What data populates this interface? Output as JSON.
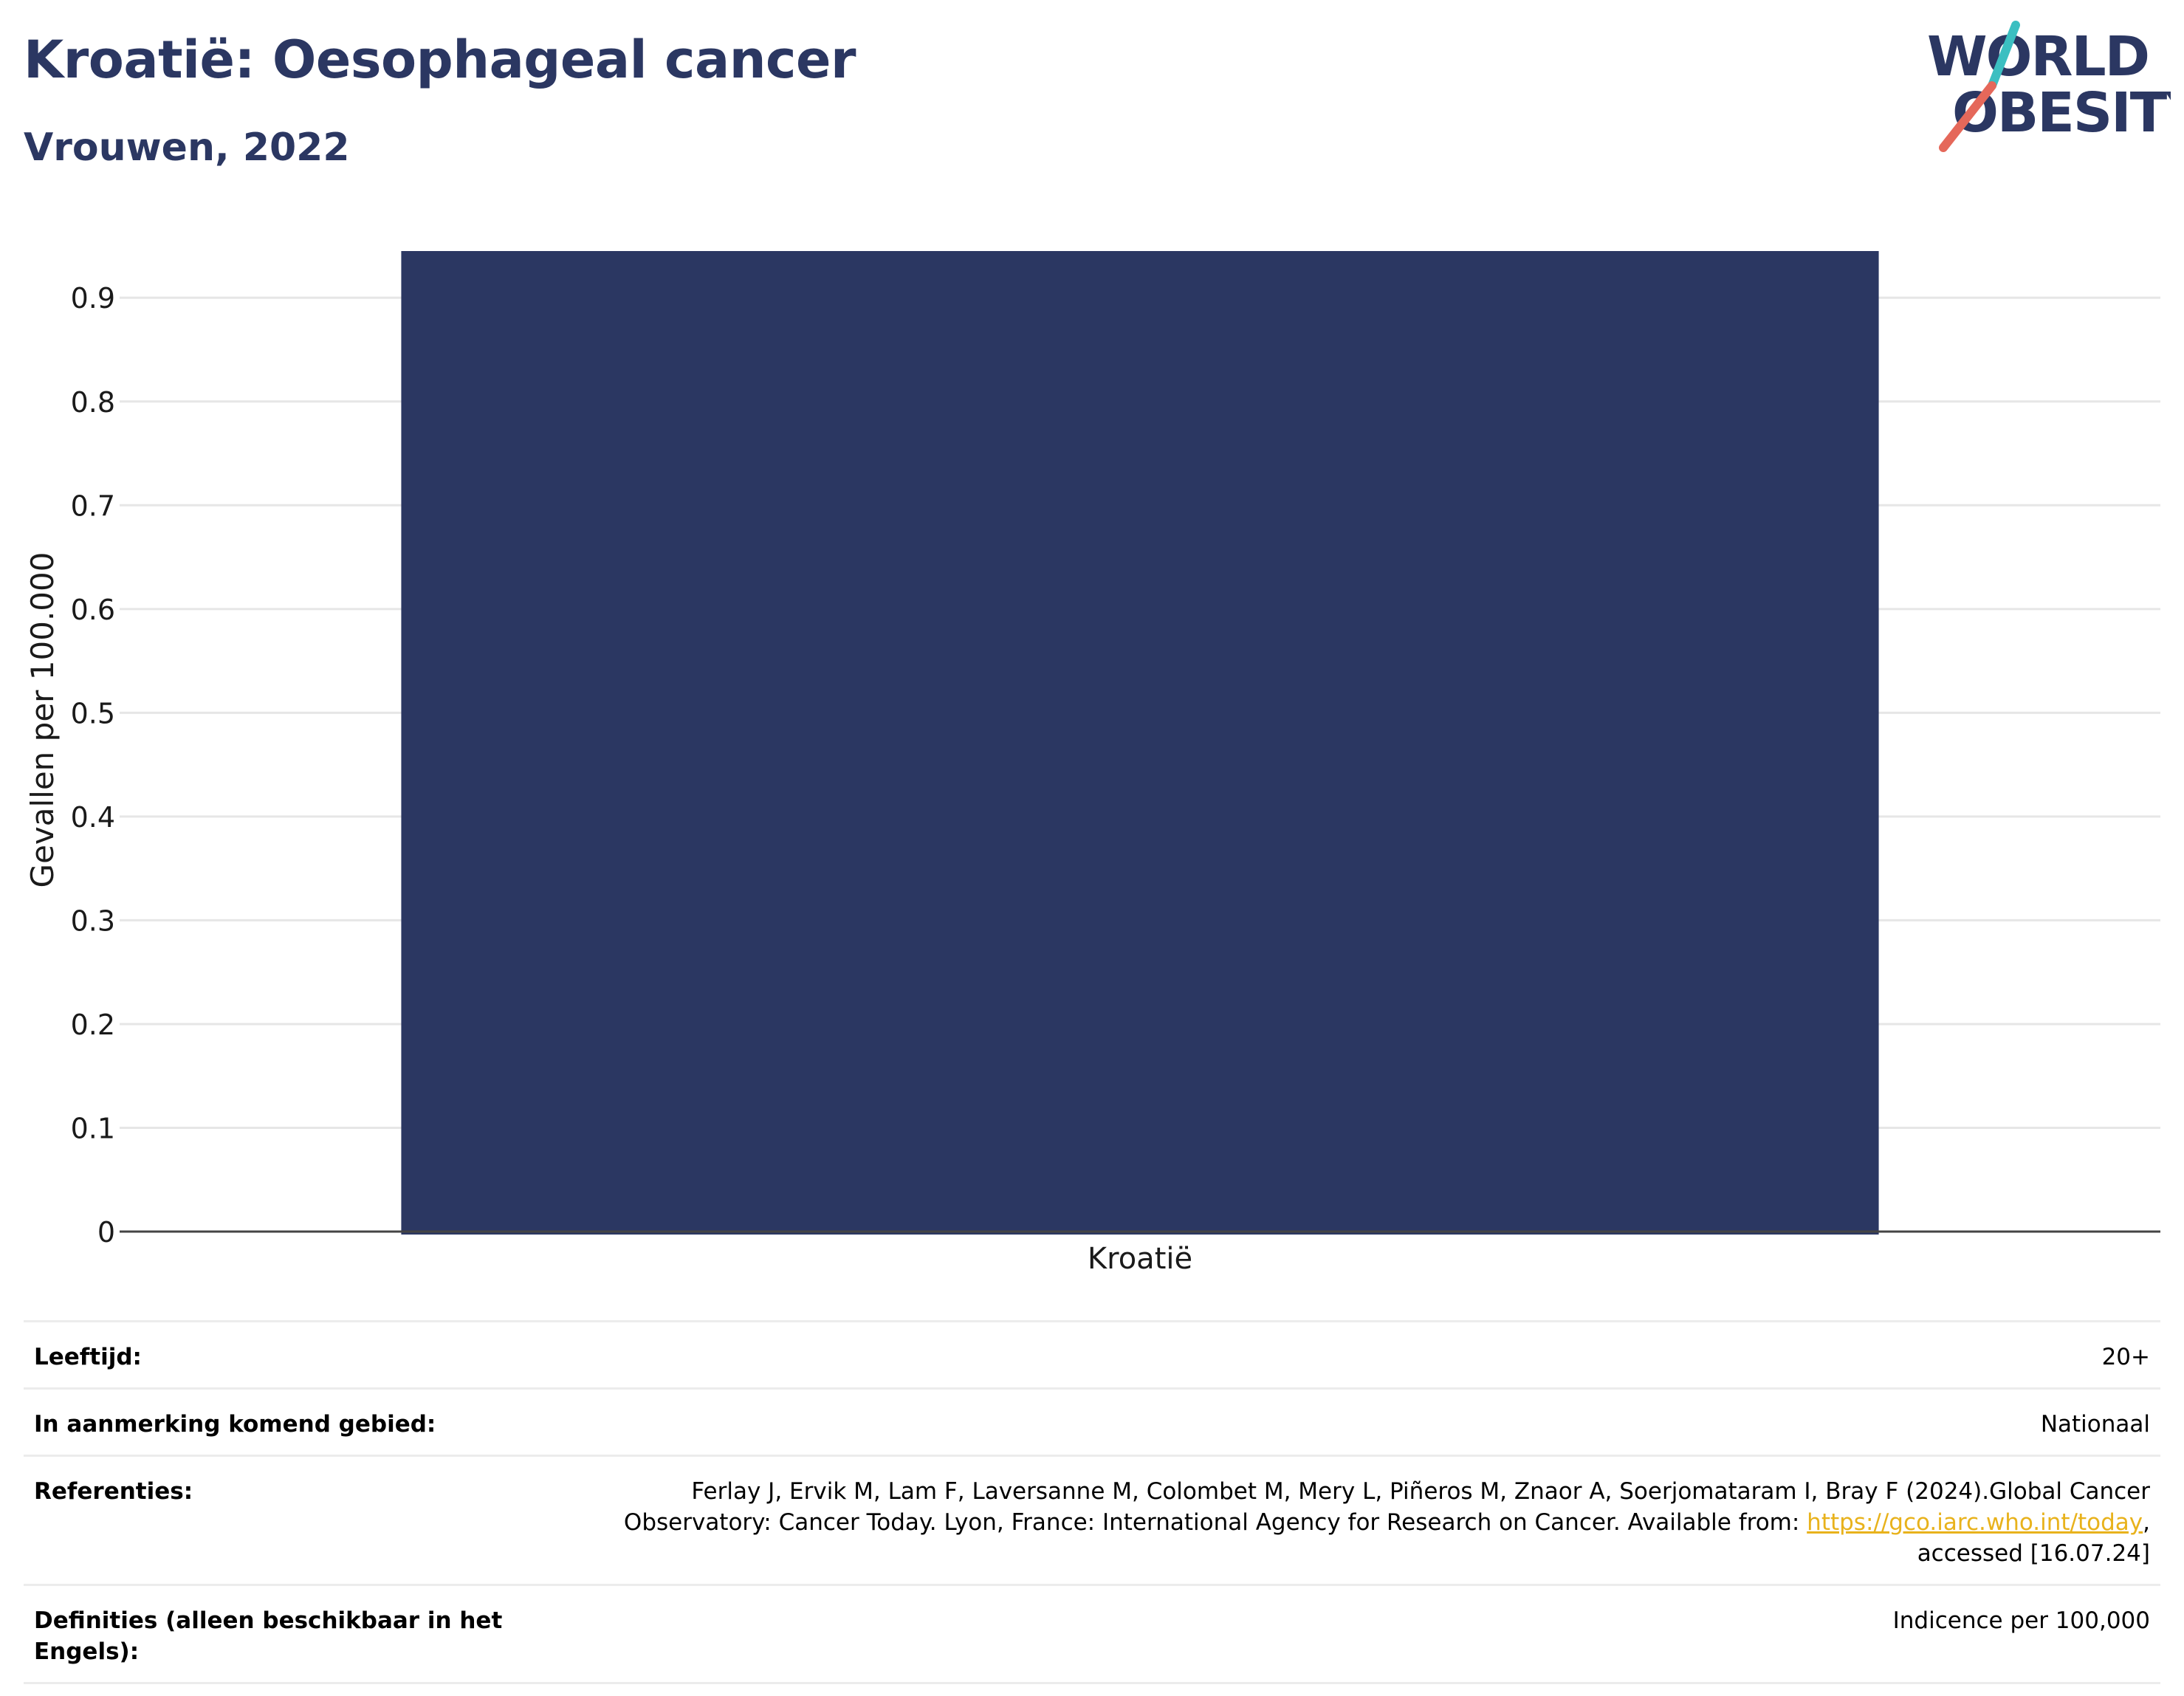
{
  "header": {
    "title": "Kroatië: Oesophageal cancer",
    "subtitle": "Vrouwen, 2022",
    "logo": {
      "line1": "WORLD",
      "line2": "OBESITY"
    }
  },
  "colors": {
    "bar": "#2b3762",
    "title": "#2b3762",
    "logo_text": "#2b3762",
    "logo_slash_teal": "#3bbfc1",
    "logo_slash_red": "#e5685a",
    "link": "#e8b21c"
  },
  "chart_data": {
    "type": "bar",
    "categories": [
      "Kroatië"
    ],
    "values": [
      0.945
    ],
    "title": "",
    "xlabel": "",
    "ylabel": "Gevallen per 100.000",
    "ylim": [
      0,
      0.945
    ],
    "yticks": [
      0,
      0.1,
      0.2,
      0.3,
      0.4,
      0.5,
      0.6,
      0.7,
      0.8,
      0.9
    ],
    "ytick_labels": [
      "0",
      "0.1",
      "0.2",
      "0.3",
      "0.4",
      "0.5",
      "0.6",
      "0.7",
      "0.8",
      "0.9"
    ],
    "grid": true,
    "legend": "none"
  },
  "info": {
    "age_label": "Leeftijd:",
    "age_value": "20+",
    "area_label": "In aanmerking komend gebied:",
    "area_value": "Nationaal",
    "refs_label": "Referenties:",
    "refs_text_1": "Ferlay J, Ervik M, Lam F, Laversanne M, Colombet M, Mery L, Piñeros M, Znaor A, Soerjomataram I, Bray F (2024).Global Cancer Observatory: Cancer Today. Lyon, France: International Agency for Research on Cancer. Available from: ",
    "refs_link": "https://gco.iarc.who.int/today",
    "refs_text_2": ", accessed [16.07.24]",
    "defs_label": "Definities (alleen beschikbaar in het Engels):",
    "defs_value": "Indicence per 100,000"
  }
}
